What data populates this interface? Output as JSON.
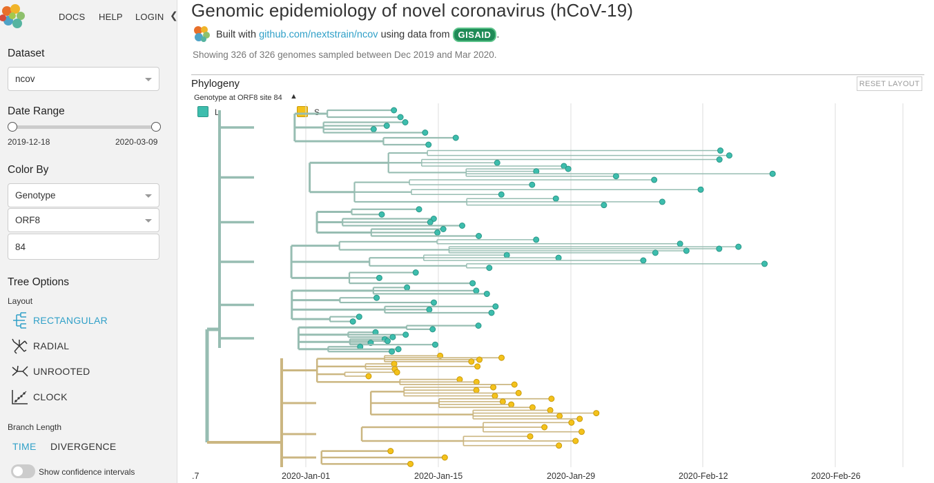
{
  "nav": {
    "docs": "DOCS",
    "help": "HELP",
    "login": "LOGIN",
    "collapse": "❮"
  },
  "dataset": {
    "heading": "Dataset",
    "value": "ncov"
  },
  "date_range": {
    "heading": "Date Range",
    "start": "2019-12-18",
    "end": "2020-03-09"
  },
  "color_by": {
    "heading": "Color By",
    "value": "Genotype",
    "gene": "ORF8",
    "position": "84"
  },
  "tree_options": {
    "heading": "Tree Options",
    "layout_label": "Layout",
    "layouts": [
      {
        "label": "RECTANGULAR",
        "icon": "rectangular-layout-icon",
        "selected": true
      },
      {
        "label": "RADIAL",
        "icon": "radial-layout-icon",
        "selected": false
      },
      {
        "label": "UNROOTED",
        "icon": "unrooted-layout-icon",
        "selected": false
      },
      {
        "label": "CLOCK",
        "icon": "clock-layout-icon",
        "selected": false
      }
    ],
    "branch_length_label": "Branch Length",
    "branch_time": "TIME",
    "branch_divergence": "DIVERGENCE",
    "confidence_label": "Show confidence intervals"
  },
  "header": {
    "title": "Genomic epidemiology of novel coronavirus (hCoV-19)",
    "built_prefix": "Built with ",
    "built_link": "github.com/nextstrain/ncov",
    "built_mid": " using data from ",
    "gisaid": "GISAID",
    "built_suffix": ".",
    "showing": "Showing 326 of 326 genomes sampled between Dec 2019 and Mar 2020."
  },
  "phylogeny": {
    "title": "Phylogeny",
    "reset": "RESET LAYOUT",
    "legend_title": "Genotype at ORF8 site 84",
    "legend": [
      {
        "label": "L",
        "color": "#3dbdad"
      },
      {
        "label": "S",
        "color": "#f4c21b"
      }
    ],
    "x_ticks": [
      ".7",
      "2020-Jan-01",
      "2020-Jan-15",
      "2020-Jan-29",
      "2020-Feb-12",
      "2020-Feb-26"
    ],
    "colors": {
      "L_branch": "#97bdb2",
      "L_tip": "#3dbdad",
      "S_branch": "#cbb681",
      "S_tip": "#f4c21b",
      "tip_stroke": "#2a9687"
    }
  }
}
